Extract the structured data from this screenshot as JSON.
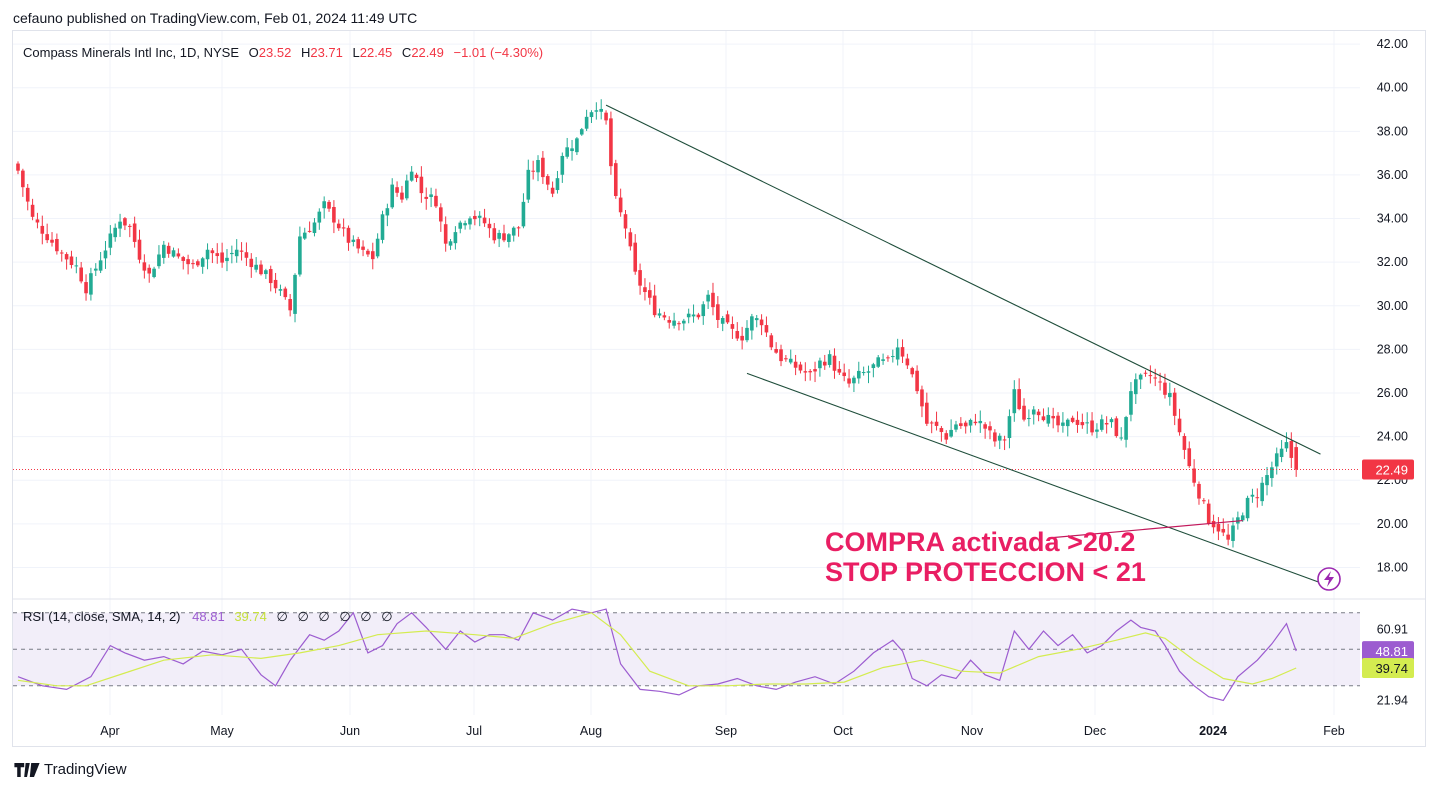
{
  "header": {
    "published_text": "cefauno published on TradingView.com, Feb 01, 2024 11:49 UTC"
  },
  "legend": {
    "symbol": "Compass Minerals Intl Inc, 1D, NYSE",
    "o_label": "O",
    "o_value": "23.52",
    "h_label": "H",
    "h_value": "23.71",
    "l_label": "L",
    "l_value": "22.45",
    "c_label": "C",
    "c_value": "22.49",
    "change": "−1.01 (−4.30%)"
  },
  "rsi_legend": {
    "label": "RSI (14, close, SMA, 14, 2)",
    "rsi_value": "48.81",
    "sma_value": "39.74",
    "na_values": [
      "∅",
      "∅",
      "∅",
      "∅",
      "∅",
      "∅"
    ]
  },
  "annotation": {
    "line1": "COMPRA activada >20.2",
    "line2": "STOP PROTECCION < 21"
  },
  "footer": {
    "brand": "TradingView"
  },
  "colors": {
    "up": "#22ab94",
    "down": "#f23645",
    "trendline": "#1e4d3a",
    "annotation": "#e91e63",
    "rsi": "#9c5cd0",
    "rsi_sma": "#d4ec50",
    "rsi_band": "#ede7f6",
    "grid": "#f0f3fa"
  },
  "icons": {
    "flash": "lightning-icon",
    "logo": "tradingview-logo-icon"
  },
  "chart_data": [
    {
      "type": "candlestick",
      "symbol": "Compass Minerals Intl Inc",
      "interval": "1D",
      "exchange": "NYSE",
      "y_ticks": [
        18.0,
        20.0,
        22.0,
        24.0,
        26.0,
        28.0,
        30.0,
        32.0,
        34.0,
        36.0,
        38.0,
        40.0,
        42.0
      ],
      "y_tick_labels": [
        "18.00",
        "20.00",
        "22.00",
        "24.00",
        "26.00",
        "28.00",
        "30.00",
        "32.00",
        "34.00",
        "36.00",
        "38.00",
        "40.00",
        "42.00"
      ],
      "ylim": [
        16.6,
        42.6
      ],
      "x_ticks": [
        "Apr",
        "May",
        "Jun",
        "Jul",
        "Aug",
        "Sep",
        "Oct",
        "Nov",
        "Dec",
        "2024",
        "Feb"
      ],
      "last_price": 22.49,
      "last_price_label": "22.49",
      "close_path": [
        [
          0,
          36.2
        ],
        [
          3,
          34.0
        ],
        [
          6,
          33.2
        ],
        [
          9,
          32.4
        ],
        [
          12,
          31.8
        ],
        [
          14,
          30.8
        ],
        [
          17,
          32.2
        ],
        [
          21,
          34.0
        ],
        [
          23,
          33.6
        ],
        [
          25,
          32.3
        ],
        [
          27,
          31.4
        ],
        [
          30,
          32.8
        ],
        [
          33,
          32.2
        ],
        [
          36,
          31.8
        ],
        [
          39,
          32.6
        ],
        [
          42,
          32.0
        ],
        [
          45,
          32.6
        ],
        [
          47,
          32.2
        ],
        [
          50,
          31.6
        ],
        [
          52,
          31.2
        ],
        [
          54,
          30.6
        ],
        [
          56,
          29.8
        ],
        [
          58,
          33.2
        ],
        [
          61,
          33.8
        ],
        [
          63,
          34.6
        ],
        [
          65,
          34.0
        ],
        [
          68,
          33.0
        ],
        [
          71,
          32.4
        ],
        [
          73,
          32.2
        ],
        [
          75,
          34.0
        ],
        [
          77,
          35.4
        ],
        [
          79,
          35.0
        ],
        [
          81,
          36.4
        ],
        [
          83,
          35.2
        ],
        [
          86,
          34.8
        ],
        [
          88,
          32.8
        ],
        [
          90,
          33.6
        ],
        [
          93,
          34.2
        ],
        [
          96,
          33.8
        ],
        [
          98,
          33.2
        ],
        [
          100,
          33.2
        ],
        [
          103,
          33.6
        ],
        [
          105,
          36.0
        ],
        [
          107,
          36.5
        ],
        [
          110,
          35.2
        ],
        [
          112,
          37.0
        ],
        [
          115,
          37.6
        ],
        [
          117,
          38.8
        ],
        [
          119,
          39.2
        ],
        [
          121,
          38.4
        ],
        [
          122,
          36.4
        ],
        [
          123,
          34.8
        ],
        [
          125,
          33.6
        ],
        [
          127,
          31.4
        ],
        [
          129,
          30.6
        ],
        [
          131,
          29.8
        ],
        [
          134,
          29.4
        ],
        [
          137,
          29.4
        ],
        [
          140,
          29.6
        ],
        [
          142,
          30.4
        ],
        [
          144,
          29.4
        ],
        [
          147,
          28.8
        ],
        [
          149,
          28.6
        ],
        [
          151,
          29.4
        ],
        [
          153,
          29.3
        ],
        [
          155,
          28.2
        ],
        [
          157,
          27.6
        ],
        [
          160,
          27.2
        ],
        [
          163,
          26.8
        ],
        [
          165,
          27.4
        ],
        [
          167,
          27.6
        ],
        [
          169,
          26.8
        ],
        [
          171,
          26.4
        ],
        [
          173,
          26.8
        ],
        [
          175,
          27.0
        ],
        [
          177,
          27.4
        ],
        [
          179,
          27.4
        ],
        [
          181,
          28.2
        ],
        [
          183,
          27.4
        ],
        [
          185,
          26.2
        ],
        [
          187,
          24.6
        ],
        [
          189,
          24.4
        ],
        [
          191,
          24.0
        ],
        [
          193,
          24.6
        ],
        [
          195,
          24.4
        ],
        [
          197,
          24.8
        ],
        [
          199,
          24.4
        ],
        [
          201,
          23.8
        ],
        [
          203,
          23.9
        ],
        [
          205,
          26.0
        ],
        [
          207,
          24.8
        ],
        [
          209,
          25.4
        ],
        [
          211,
          25.0
        ],
        [
          213,
          24.6
        ],
        [
          215,
          24.4
        ],
        [
          217,
          24.8
        ],
        [
          219,
          24.6
        ],
        [
          221,
          24.4
        ],
        [
          223,
          24.6
        ],
        [
          225,
          24.6
        ],
        [
          227,
          23.8
        ],
        [
          229,
          26.2
        ],
        [
          231,
          26.6
        ],
        [
          233,
          26.8
        ],
        [
          235,
          26.4
        ],
        [
          237,
          25.8
        ],
        [
          239,
          24.2
        ],
        [
          241,
          22.6
        ],
        [
          243,
          21.4
        ],
        [
          245,
          20.2
        ],
        [
          247,
          19.8
        ],
        [
          249,
          19.2
        ],
        [
          251,
          20.2
        ],
        [
          253,
          21.0
        ],
        [
          255,
          21.4
        ],
        [
          257,
          22.2
        ],
        [
          259,
          23.0
        ],
        [
          261,
          23.6
        ],
        [
          263,
          22.49
        ]
      ],
      "trendlines": [
        {
          "from": [
            121,
            39.2
          ],
          "to": [
            268,
            23.2
          ]
        },
        {
          "from": [
            150,
            26.9
          ],
          "to": [
            268,
            17.3
          ]
        },
        {
          "from": [
            212,
            19.35
          ],
          "to": [
            252,
            20.15
          ]
        }
      ]
    },
    {
      "type": "line",
      "title": "RSI (14, close, SMA, 14, 2)",
      "y_ticks": [
        21.94,
        60.91
      ],
      "y_tick_labels": [
        "21.94",
        "60.91"
      ],
      "band": [
        30,
        70
      ],
      "ylim": [
        14,
        77
      ],
      "series": [
        {
          "name": "RSI",
          "values": [
            [
              0,
              35
            ],
            [
              5,
              30
            ],
            [
              10,
              28
            ],
            [
              15,
              35
            ],
            [
              19,
              52
            ],
            [
              22,
              48
            ],
            [
              26,
              44
            ],
            [
              30,
              46
            ],
            [
              34,
              42
            ],
            [
              38,
              49
            ],
            [
              42,
              47
            ],
            [
              46,
              50
            ],
            [
              50,
              36
            ],
            [
              53,
              30
            ],
            [
              56,
              44
            ],
            [
              60,
              58
            ],
            [
              63,
              55
            ],
            [
              66,
              60
            ],
            [
              69,
              70
            ],
            [
              72,
              48
            ],
            [
              75,
              52
            ],
            [
              78,
              64
            ],
            [
              81,
              70
            ],
            [
              84,
              62
            ],
            [
              88,
              50
            ],
            [
              91,
              60
            ],
            [
              94,
              54
            ],
            [
              97,
              58
            ],
            [
              100,
              58
            ],
            [
              103,
              55
            ],
            [
              106,
              70
            ],
            [
              110,
              66
            ],
            [
              114,
              72
            ],
            [
              118,
              70
            ],
            [
              121,
              72
            ],
            [
              124,
              42
            ],
            [
              128,
              28
            ],
            [
              132,
              27
            ],
            [
              136,
              25
            ],
            [
              140,
              30
            ],
            [
              144,
              31
            ],
            [
              148,
              34
            ],
            [
              152,
              30
            ],
            [
              156,
              28
            ],
            [
              160,
              32
            ],
            [
              164,
              35
            ],
            [
              168,
              31
            ],
            [
              172,
              38
            ],
            [
              176,
              48
            ],
            [
              180,
              55
            ],
            [
              182,
              49
            ],
            [
              184,
              34
            ],
            [
              187,
              30
            ],
            [
              190,
              36
            ],
            [
              193,
              34
            ],
            [
              196,
              44
            ],
            [
              199,
              36
            ],
            [
              202,
              33
            ],
            [
              205,
              60
            ],
            [
              208,
              50
            ],
            [
              211,
              60
            ],
            [
              214,
              52
            ],
            [
              217,
              58
            ],
            [
              220,
              48
            ],
            [
              223,
              52
            ],
            [
              226,
              60
            ],
            [
              229,
              66
            ],
            [
              231,
              62
            ],
            [
              234,
              60
            ],
            [
              236,
              52
            ],
            [
              239,
              38
            ],
            [
              242,
              30
            ],
            [
              245,
              24
            ],
            [
              248,
              22
            ],
            [
              251,
              35
            ],
            [
              255,
              44
            ],
            [
              258,
              53
            ],
            [
              261,
              64
            ],
            [
              263,
              49
            ]
          ]
        },
        {
          "name": "SMA",
          "values": [
            [
              0,
              33
            ],
            [
              8,
              30
            ],
            [
              14,
              30
            ],
            [
              22,
              37
            ],
            [
              30,
              44
            ],
            [
              40,
              47
            ],
            [
              50,
              45
            ],
            [
              58,
              48
            ],
            [
              66,
              52
            ],
            [
              74,
              58
            ],
            [
              84,
              60
            ],
            [
              94,
              58
            ],
            [
              102,
              56
            ],
            [
              110,
              64
            ],
            [
              118,
              70
            ],
            [
              124,
              58
            ],
            [
              130,
              38
            ],
            [
              138,
              30
            ],
            [
              146,
              30
            ],
            [
              154,
              31
            ],
            [
              162,
              31
            ],
            [
              170,
              32
            ],
            [
              178,
              40
            ],
            [
              186,
              44
            ],
            [
              194,
              38
            ],
            [
              202,
              37
            ],
            [
              210,
              46
            ],
            [
              218,
              50
            ],
            [
              226,
              55
            ],
            [
              232,
              59
            ],
            [
              236,
              56
            ],
            [
              242,
              44
            ],
            [
              248,
              34
            ],
            [
              254,
              31
            ],
            [
              258,
              34
            ],
            [
              263,
              39.74
            ]
          ]
        }
      ]
    }
  ]
}
